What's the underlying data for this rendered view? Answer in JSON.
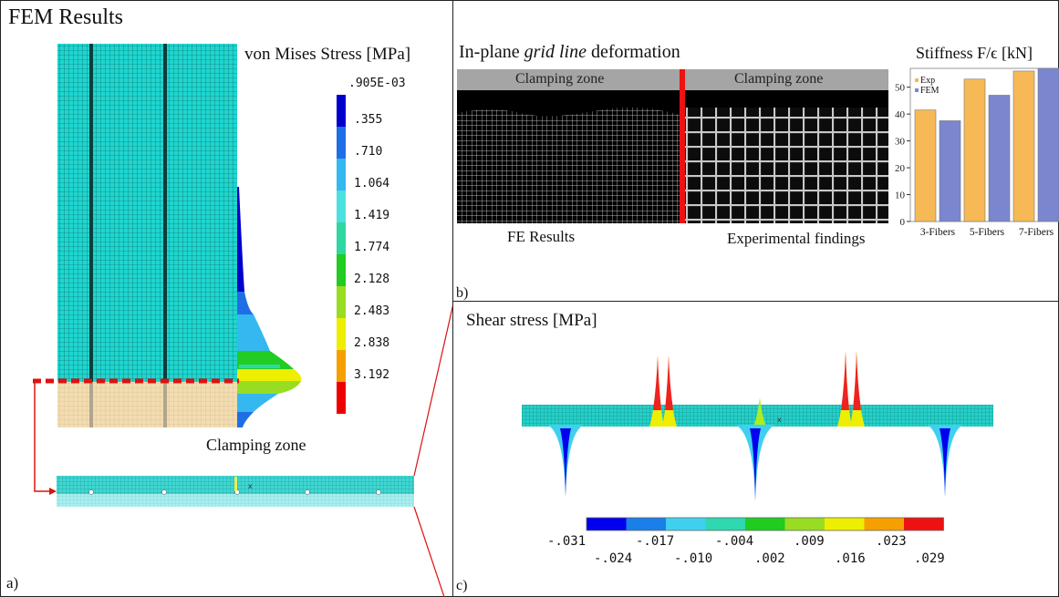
{
  "panel_a": {
    "title": "FEM Results",
    "legend_title": "von Mises Stress [MPa]",
    "legend_levels": [
      ".905E-03",
      ".355",
      ".710",
      "1.064",
      "1.419",
      "1.774",
      "2.128",
      "2.483",
      "2.838",
      "3.192"
    ],
    "legend_colors": [
      "#0000cc",
      "#1e6fe6",
      "#35b7f0",
      "#4de0e0",
      "#2ed8a0",
      "#22cc22",
      "#99dd22",
      "#eeee00",
      "#f5a000",
      "#ee0000"
    ],
    "clamping_label": "Clamping zone",
    "subfigure_label": "a)"
  },
  "panel_b": {
    "title_prefix": "In-plane ",
    "title_italic": "grid line",
    "title_suffix": " deformation",
    "clamp_left": "Clamping zone",
    "clamp_right": "Clamping zone",
    "fe_label": "FE Results",
    "exp_label": "Experimental findings",
    "subfigure_label": "b)"
  },
  "stiffness_chart": {
    "title": "Stiffness F/ϵ [kN]",
    "chart_data": {
      "type": "bar",
      "title": "Stiffness F/ϵ [kN]",
      "categories": [
        "3-Fibers",
        "5-Fibers",
        "7-Fibers"
      ],
      "series": [
        {
          "name": "Exp",
          "values": [
            41.5,
            53,
            56
          ],
          "color": "#f7b955"
        },
        {
          "name": "FEM",
          "values": [
            37.5,
            47,
            57
          ],
          "color": "#7b86cf"
        }
      ],
      "ylim": [
        0,
        57
      ],
      "yticks": [
        "0",
        "10",
        "20",
        "30",
        "40",
        "50"
      ],
      "legend_placement": "top-left",
      "grid": false
    }
  },
  "panel_c": {
    "title": "Shear stress [MPa]",
    "colorbar_colors": [
      "#0000ee",
      "#1a7fe8",
      "#3fd0f0",
      "#2ed8b0",
      "#20cc20",
      "#99dd22",
      "#eeee00",
      "#f5a000",
      "#ee1111"
    ],
    "labels_top": [
      "-.031",
      "-.017",
      "-.004",
      ".009",
      ".023"
    ],
    "labels_bottom": [
      "-.024",
      "-.010",
      ".002",
      ".016",
      ".029"
    ],
    "subfigure_label": "c)"
  }
}
